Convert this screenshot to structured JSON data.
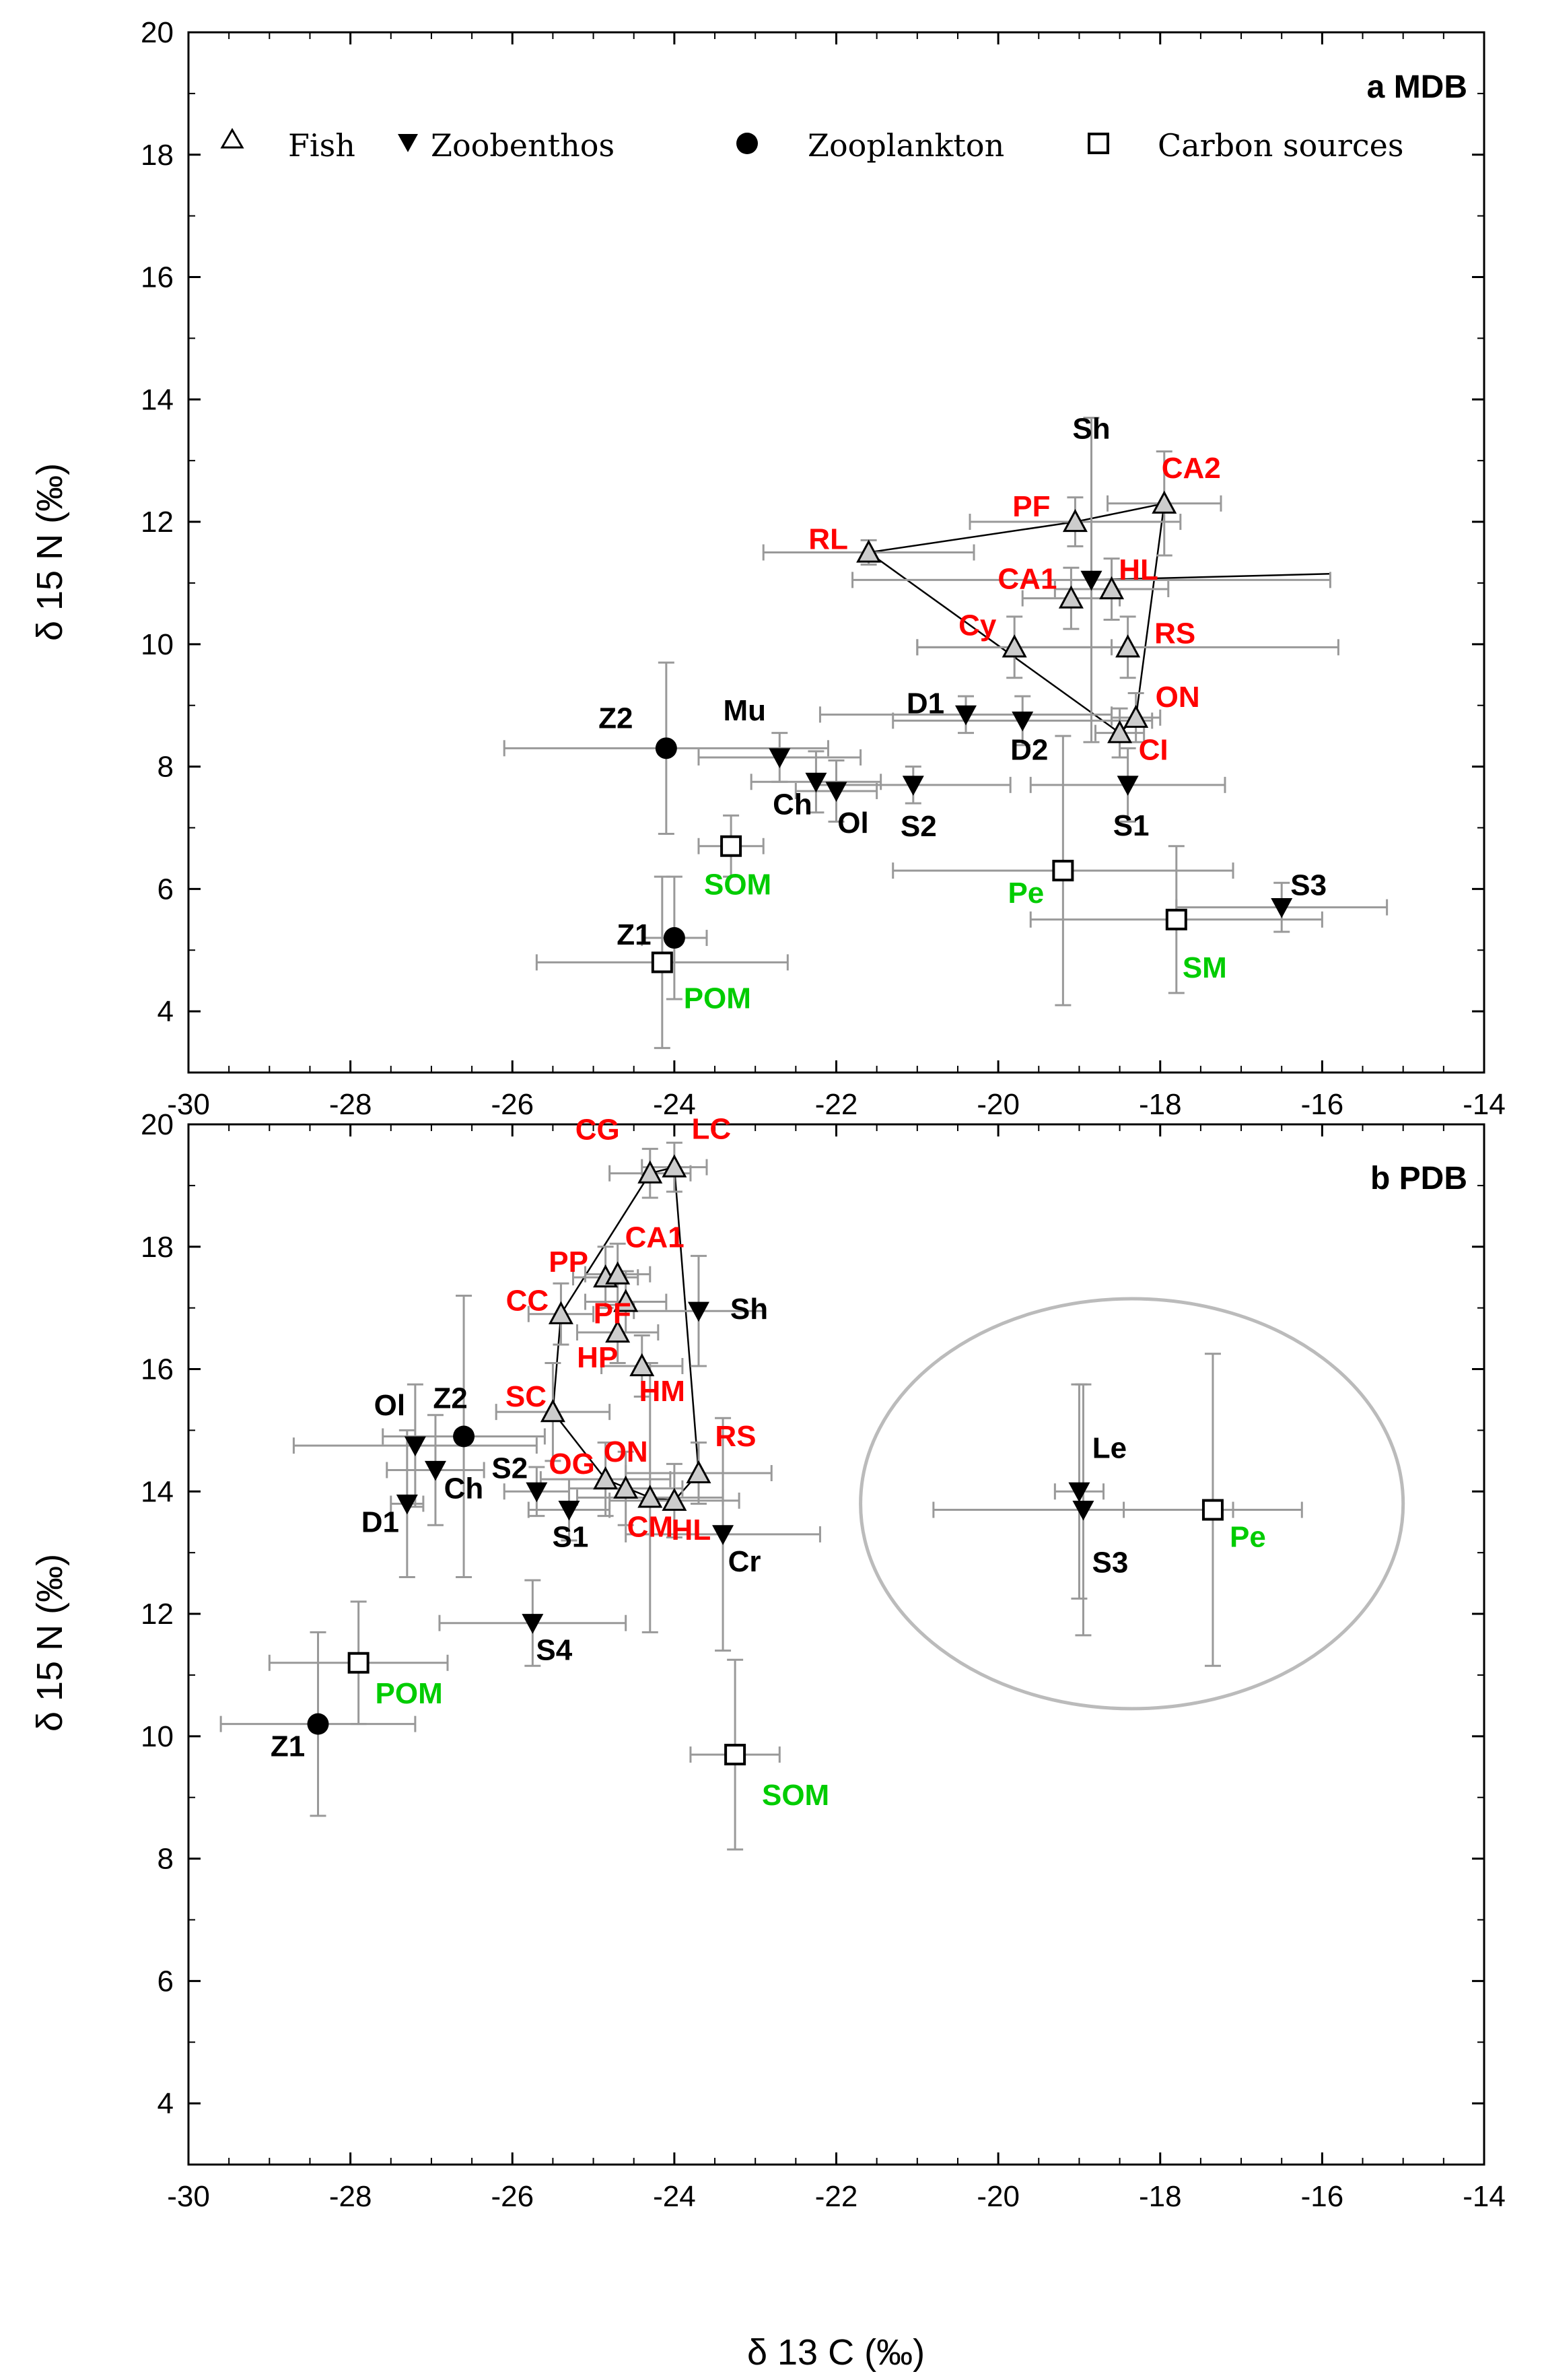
{
  "chart_data": [
    {
      "type": "scatter",
      "title": "a  MDB",
      "xlabel": "δ 13 C (‰)",
      "ylabel": "δ 15 N (‰)",
      "xlim": [
        -30,
        -14
      ],
      "ylim": [
        3,
        20
      ],
      "xticks": [
        -30,
        -28,
        -26,
        -24,
        -22,
        -20,
        -18,
        -16,
        -14
      ],
      "yticks": [
        4,
        6,
        8,
        10,
        12,
        14,
        16,
        18,
        20
      ],
      "x_tick_labels": [
        "-30",
        "-28",
        "-26",
        "-24",
        "-22",
        "-20",
        "-18",
        "-16",
        "-14"
      ],
      "y_tick_labels": [
        "4",
        "6",
        "8",
        "10",
        "12",
        "14",
        "16",
        "18",
        "20"
      ],
      "legend": [
        {
          "label": "Fish",
          "marker": "open-triangle"
        },
        {
          "label": "Zoobenthos",
          "marker": "filled-down-triangle"
        },
        {
          "label": "Zooplankton",
          "marker": "filled-circle"
        },
        {
          "label": "Carbon sources",
          "marker": "open-square"
        }
      ],
      "colors": {
        "fish": "#ff0000",
        "zoobenthos": "#000000",
        "zooplankton": "#000000",
        "carbon": "#00cc00",
        "errorbar": "#999999"
      },
      "points": [
        {
          "label": "CA2",
          "group": "fish",
          "x": -17.95,
          "y": 12.3,
          "xerr": 0.7,
          "yerr": 0.85
        },
        {
          "label": "PF",
          "group": "fish",
          "x": -19.05,
          "y": 12.0,
          "xerr": 1.3,
          "yerr": 0.4
        },
        {
          "label": "RL",
          "group": "fish",
          "x": -21.6,
          "y": 11.5,
          "xerr": 1.3,
          "yerr": 0.2
        },
        {
          "label": "HL",
          "group": "fish",
          "x": -18.6,
          "y": 10.9,
          "xerr": 0.7,
          "yerr": 0.5
        },
        {
          "label": "CA1",
          "group": "fish",
          "x": -19.1,
          "y": 10.75,
          "xerr": 0.6,
          "yerr": 0.5
        },
        {
          "label": "Cy",
          "group": "fish",
          "x": -19.8,
          "y": 9.95,
          "xerr": 1.2,
          "yerr": 0.5
        },
        {
          "label": "RS",
          "group": "fish",
          "x": -18.4,
          "y": 9.95,
          "xerr": 2.6,
          "yerr": 0.5
        },
        {
          "label": "ON",
          "group": "fish",
          "x": -18.3,
          "y": 8.8,
          "xerr": 0.3,
          "yerr": 0.4
        },
        {
          "label": "CI",
          "group": "fish",
          "x": -18.5,
          "y": 8.55,
          "xerr": 0.3,
          "yerr": 0.4
        },
        {
          "label": "Sh",
          "group": "zoobenthos",
          "x": -18.85,
          "y": 11.05,
          "xerr": 2.95,
          "yerr": 2.65
        },
        {
          "label": "D1",
          "group": "zoobenthos",
          "x": -20.4,
          "y": 8.85,
          "xerr": 1.8,
          "yerr": 0.3
        },
        {
          "label": "D2",
          "group": "zoobenthos",
          "x": -19.7,
          "y": 8.75,
          "xerr": 1.6,
          "yerr": 0.4
        },
        {
          "label": "S1",
          "group": "zoobenthos",
          "x": -18.4,
          "y": 7.7,
          "xerr": 1.2,
          "yerr": 0.6
        },
        {
          "label": "Mu",
          "group": "zoobenthos",
          "x": -22.7,
          "y": 8.15,
          "xerr": 1.0,
          "yerr": 0.4
        },
        {
          "label": "Ch",
          "group": "zoobenthos",
          "x": -22.25,
          "y": 7.75,
          "xerr": 0.8,
          "yerr": 0.5
        },
        {
          "label": "Ol",
          "group": "zoobenthos",
          "x": -22.0,
          "y": 7.6,
          "xerr": 0.5,
          "yerr": 0.5
        },
        {
          "label": "S2",
          "group": "zoobenthos",
          "x": -21.05,
          "y": 7.7,
          "xerr": 1.2,
          "yerr": 0.3
        },
        {
          "label": "S3",
          "group": "zoobenthos",
          "x": -16.5,
          "y": 5.7,
          "xerr": 1.3,
          "yerr": 0.4
        },
        {
          "label": "Z2",
          "group": "zooplankton",
          "x": -24.1,
          "y": 8.3,
          "xerr": 2.0,
          "yerr": 1.4
        },
        {
          "label": "Z1",
          "group": "zooplankton",
          "x": -24.0,
          "y": 5.2,
          "xerr": 0.4,
          "yerr": 1.0
        },
        {
          "label": "SOM",
          "group": "carbon",
          "x": -23.3,
          "y": 6.7,
          "xerr": 0.4,
          "yerr": 0.5
        },
        {
          "label": "POM",
          "group": "carbon",
          "x": -24.15,
          "y": 4.8,
          "xerr": 1.55,
          "yerr": 1.4
        },
        {
          "label": "Pe",
          "group": "carbon",
          "x": -19.2,
          "y": 6.3,
          "xerr": 2.1,
          "yerr": 2.2
        },
        {
          "label": "SM",
          "group": "carbon",
          "x": -17.8,
          "y": 5.5,
          "xerr": 1.8,
          "yerr": 1.2
        }
      ],
      "hull": [
        [
          -17.95,
          12.3
        ],
        [
          -19.05,
          12.0
        ],
        [
          -21.6,
          11.5
        ],
        [
          -18.5,
          8.55
        ],
        [
          -18.3,
          8.8
        ]
      ]
    },
    {
      "type": "scatter",
      "title": "b  PDB",
      "xlabel": "δ 13 C (‰)",
      "ylabel": "δ 15 N (‰)",
      "xlim": [
        -30,
        -14
      ],
      "ylim": [
        3,
        20
      ],
      "xticks": [
        -30,
        -28,
        -26,
        -24,
        -22,
        -20,
        -18,
        -16,
        -14
      ],
      "yticks": [
        4,
        6,
        8,
        10,
        12,
        14,
        16,
        18,
        20
      ],
      "x_tick_labels": [
        "-30",
        "-28",
        "-26",
        "-24",
        "-22",
        "-20",
        "-18",
        "-16",
        "-14"
      ],
      "y_tick_labels": [
        "4",
        "6",
        "8",
        "10",
        "12",
        "14",
        "16",
        "18",
        "20"
      ],
      "colors": {
        "fish": "#ff0000",
        "zoobenthos": "#000000",
        "zooplankton": "#000000",
        "carbon": "#00cc00",
        "errorbar": "#999999"
      },
      "points": [
        {
          "label": "CG",
          "group": "fish",
          "x": -24.3,
          "y": 19.2,
          "xerr": 0.5,
          "yerr": 0.4
        },
        {
          "label": "LC",
          "group": "fish",
          "x": -24.0,
          "y": 19.3,
          "xerr": 0.4,
          "yerr": 0.4
        },
        {
          "label": "PP",
          "group": "fish",
          "x": -24.85,
          "y": 17.5,
          "xerr": 0.4,
          "yerr": 0.5
        },
        {
          "label": "CA1",
          "group": "fish",
          "x": -24.7,
          "y": 17.55,
          "xerr": 0.4,
          "yerr": 0.5
        },
        {
          "label": "PF",
          "group": "fish",
          "x": -24.6,
          "y": 17.1,
          "xerr": 0.5,
          "yerr": 0.5
        },
        {
          "label": "CC",
          "group": "fish",
          "x": -25.4,
          "y": 16.9,
          "xerr": 0.4,
          "yerr": 0.5
        },
        {
          "label": "HP",
          "group": "fish",
          "x": -24.7,
          "y": 16.6,
          "xerr": 0.5,
          "yerr": 0.5
        },
        {
          "label": "HM",
          "group": "fish",
          "x": -24.4,
          "y": 16.05,
          "xerr": 0.5,
          "yerr": 0.5
        },
        {
          "label": "SC",
          "group": "fish",
          "x": -25.5,
          "y": 15.3,
          "xerr": 0.7,
          "yerr": 0.8
        },
        {
          "label": "RS",
          "group": "fish",
          "x": -23.7,
          "y": 14.3,
          "xerr": 0.9,
          "yerr": 0.5
        },
        {
          "label": "OG",
          "group": "fish",
          "x": -24.85,
          "y": 14.2,
          "xerr": 0.8,
          "yerr": 0.6
        },
        {
          "label": "ON",
          "group": "fish",
          "x": -24.6,
          "y": 14.05,
          "xerr": 0.7,
          "yerr": 0.6
        },
        {
          "label": "CM",
          "group": "fish",
          "x": -24.3,
          "y": 13.9,
          "xerr": 0.9,
          "yerr": 2.2
        },
        {
          "label": "HL",
          "group": "fish",
          "x": -24.0,
          "y": 13.85,
          "xerr": 0.8,
          "yerr": 0.6
        },
        {
          "label": "Sh",
          "group": "zoobenthos",
          "x": -23.7,
          "y": 16.95,
          "xerr": 0.8,
          "yerr": 0.9
        },
        {
          "label": "Cr",
          "group": "zoobenthos",
          "x": -23.4,
          "y": 13.3,
          "xerr": 1.2,
          "yerr": 1.9
        },
        {
          "label": "Ol",
          "group": "zoobenthos",
          "x": -27.2,
          "y": 14.75,
          "xerr": 1.5,
          "yerr": 1.0
        },
        {
          "label": "Ch",
          "group": "zoobenthos",
          "x": -26.95,
          "y": 14.35,
          "xerr": 0.6,
          "yerr": 0.9
        },
        {
          "label": "D1",
          "group": "zoobenthos",
          "x": -27.3,
          "y": 13.8,
          "xerr": 0.2,
          "yerr": 1.2
        },
        {
          "label": "S2",
          "group": "zoobenthos",
          "x": -25.7,
          "y": 14.0,
          "xerr": 0.4,
          "yerr": 0.4
        },
        {
          "label": "S1",
          "group": "zoobenthos",
          "x": -25.3,
          "y": 13.7,
          "xerr": 0.5,
          "yerr": 0.5
        },
        {
          "label": "S4",
          "group": "zoobenthos",
          "x": -25.75,
          "y": 11.85,
          "xerr": 1.15,
          "yerr": 0.7
        },
        {
          "label": "Le",
          "group": "zoobenthos",
          "x": -19.0,
          "y": 14.0,
          "xerr": 0.3,
          "yerr": 1.75
        },
        {
          "label": "S3",
          "group": "zoobenthos",
          "x": -18.95,
          "y": 13.7,
          "xerr": 1.85,
          "yerr": 2.05
        },
        {
          "label": "Z2",
          "group": "zooplankton",
          "x": -26.6,
          "y": 14.9,
          "xerr": 1.0,
          "yerr": 2.3
        },
        {
          "label": "Z1",
          "group": "zooplankton",
          "x": -28.4,
          "y": 10.2,
          "xerr": 1.2,
          "yerr": 1.5
        },
        {
          "label": "POM",
          "group": "carbon",
          "x": -27.9,
          "y": 11.2,
          "xerr": 1.1,
          "yerr": 1.0
        },
        {
          "label": "SOM",
          "group": "carbon",
          "x": -23.25,
          "y": 9.7,
          "xerr": 0.55,
          "yerr": 1.55
        },
        {
          "label": "Pe",
          "group": "carbon",
          "x": -17.35,
          "y": 13.7,
          "xerr": 1.1,
          "yerr": 2.55
        }
      ],
      "hull": [
        [
          -24.0,
          19.3
        ],
        [
          -24.3,
          19.2
        ],
        [
          -25.4,
          16.9
        ],
        [
          -25.5,
          15.3
        ],
        [
          -24.85,
          14.2
        ],
        [
          -24.3,
          13.9
        ],
        [
          -24.0,
          13.85
        ],
        [
          -23.7,
          14.3
        ]
      ],
      "ellipse": {
        "cx": -18.35,
        "cy": 13.8,
        "rx": 3.35,
        "ry": 3.35
      }
    }
  ]
}
